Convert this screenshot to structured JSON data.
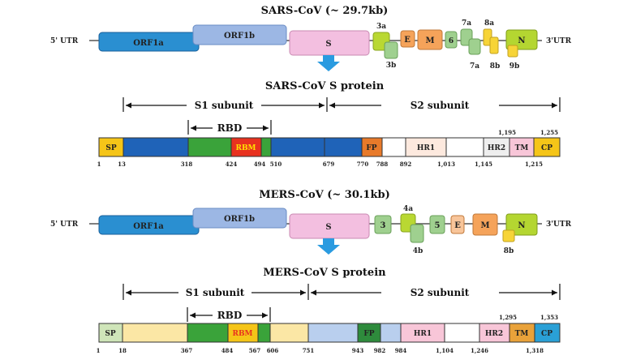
{
  "sars_genome": {
    "title": "SARS-CoV (~ 29.7kb)",
    "utr5": "5' UTR",
    "utr3": "3'UTR",
    "genes": {
      "orf1a": "ORF1a",
      "orf1b": "ORF1b",
      "s": "S",
      "g3a": "3a",
      "g3b": "3b",
      "e": "E",
      "m": "M",
      "g6": "6",
      "g7a": "7a",
      "g7a_low": "7a",
      "g8a": "8a",
      "g8b": "8b",
      "g9b": "9b",
      "n": "N"
    }
  },
  "sars_s": {
    "title": "SARS-CoV S protein",
    "s1": "S1 subunit",
    "s2": "S2 subunit",
    "rbd": "RBD",
    "segments": {
      "sp": "SP",
      "rbm": "RBM",
      "fp": "FP",
      "hr1": "HR1",
      "hr2": "HR2",
      "tm": "TM",
      "cp": "CP"
    },
    "positions": [
      "1",
      "13",
      "318",
      "424",
      "494",
      "510",
      "679",
      "770",
      "788",
      "892",
      "1,013",
      "1,145",
      "1,215"
    ],
    "upper_positions": [
      "1,195",
      "1,255"
    ]
  },
  "mers_genome": {
    "title": "MERS-CoV (~ 30.1kb)",
    "utr5": "5' UTR",
    "utr3": "3'UTR",
    "genes": {
      "orf1a": "ORF1a",
      "orf1b": "ORF1b",
      "s": "S",
      "g3": "3",
      "g4a": "4a",
      "g4b": "4b",
      "g5": "5",
      "e": "E",
      "m": "M",
      "n": "N",
      "g8b": "8b"
    }
  },
  "mers_s": {
    "title": "MERS-CoV S protein",
    "s1": "S1 subunit",
    "s2": "S2 subunit",
    "rbd": "RBD",
    "segments": {
      "sp": "SP",
      "rbm": "RBM",
      "fp": "FP",
      "hr1": "HR1",
      "hr2": "HR2",
      "tm": "TM",
      "cp": "CP"
    },
    "positions": [
      "1",
      "18",
      "367",
      "484",
      "567",
      "606",
      "751",
      "943",
      "982",
      "984",
      "1,104",
      "1,246",
      "1,318"
    ],
    "upper_positions": [
      "1,295",
      "1,353"
    ]
  },
  "colors": {
    "orf1a": "#2a8fd1",
    "orf1b": "#9cb7e4",
    "s": "#f3bfe0",
    "arrow": "#2a9be0",
    "lime": "#b9d832",
    "lightgreen": "#9fd08f",
    "orange": "#f5a35a",
    "peach": "#f8c59a",
    "yellow": "#f7d437",
    "n": "#b4d631",
    "sp_sars": "#f5c518",
    "blue_dark": "#1f63b8",
    "green": "#3aa33a",
    "rbm_red": "#e8321f",
    "fp_orange": "#e87a2a",
    "hr_pink": "#f8c6d8",
    "yellow_light": "#fbe7a5",
    "light_blue": "#b9cfee",
    "fp_green": "#2e8b3c",
    "sp_mers": "#cfe5b9",
    "tm_orange": "#e9a23a",
    "cp_blue": "#2aa0d6"
  }
}
